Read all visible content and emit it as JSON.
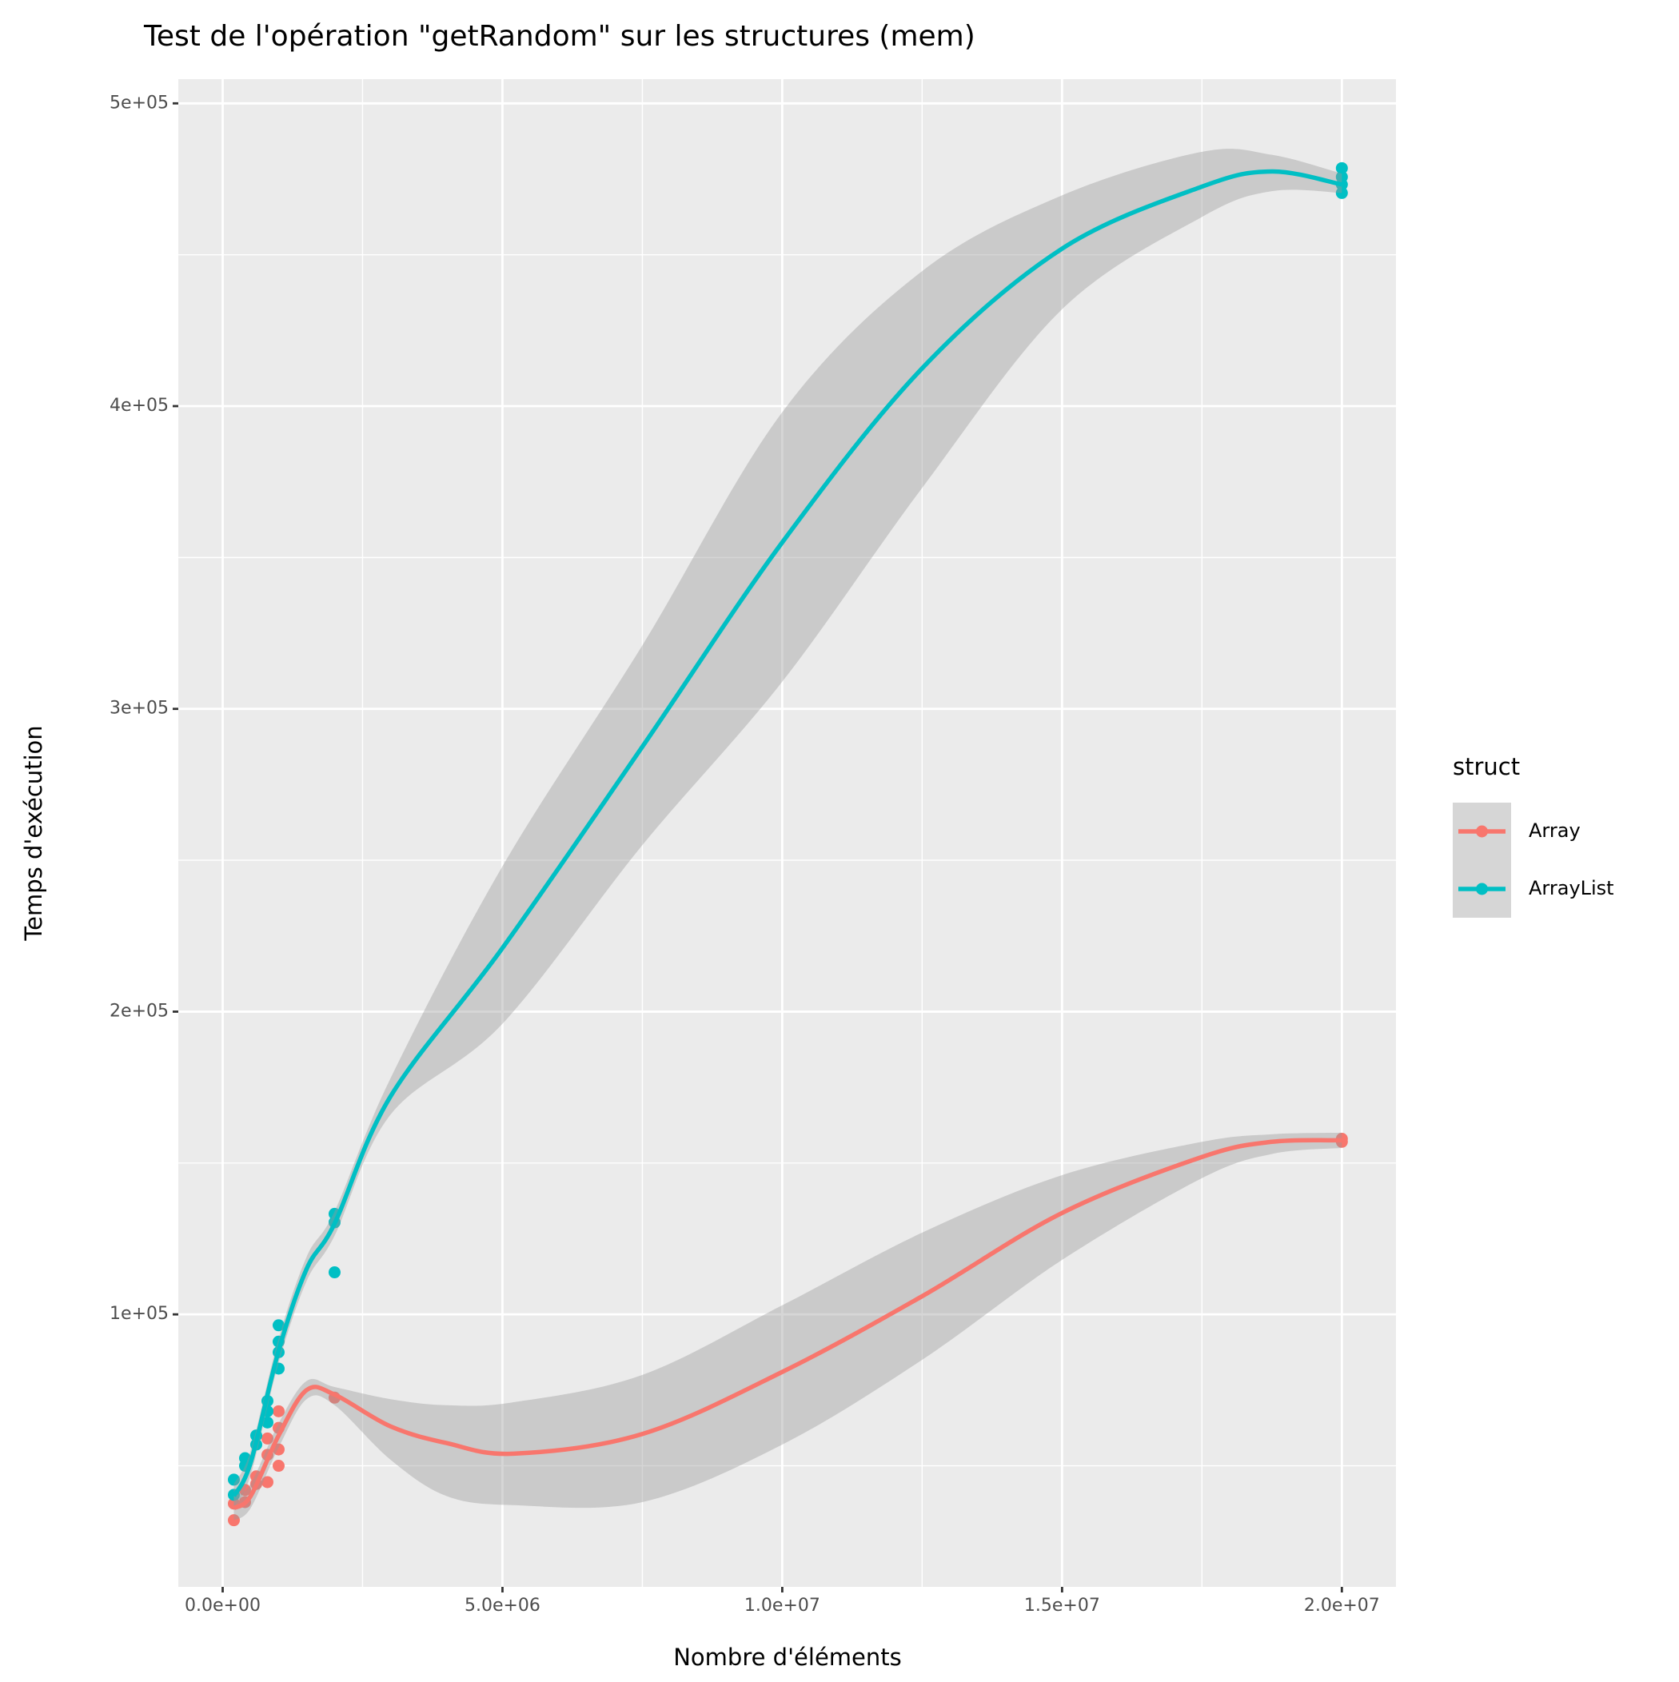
{
  "chart_data": {
    "type": "scatter",
    "title": "Test de l'opération \"getRandom\" sur les structures (mem)",
    "x_label": "Nombre d'éléments",
    "y_label": "Temps d'exécution",
    "legend_title": "struct",
    "panel_color": "#EBEBEB",
    "ribbon_color": "#999999",
    "grid": true,
    "xlim": [
      -793000,
      20967000
    ],
    "ylim": [
      10000,
      508000
    ],
    "xticks": [
      {
        "value": 0,
        "label": "0.0e+00"
      },
      {
        "value": 5000000,
        "label": "5.0e+06"
      },
      {
        "value": 10000000,
        "label": "1.0e+07"
      },
      {
        "value": 15000000,
        "label": "1.5e+07"
      },
      {
        "value": 20000000,
        "label": "2.0e+07"
      }
    ],
    "yticks": [
      {
        "value": 100000,
        "label": "1e+05"
      },
      {
        "value": 200000,
        "label": "2e+05"
      },
      {
        "value": 300000,
        "label": "3e+05"
      },
      {
        "value": 400000,
        "label": "4e+05"
      },
      {
        "value": 500000,
        "label": "5e+05"
      }
    ],
    "xminor": [
      2500000,
      7500000,
      12500000,
      17500000
    ],
    "yminor": [
      50000,
      150000,
      250000,
      350000,
      450000
    ],
    "series": [
      {
        "name": "Array",
        "color": "#F8766D",
        "points": {
          "x": [
            200000,
            200000,
            400000,
            400000,
            600000,
            600000,
            800000,
            800000,
            800000,
            1000000,
            1000000,
            1000000,
            1000000,
            2000000,
            20000000,
            20000000
          ],
          "y": [
            37500,
            32000,
            42000,
            38000,
            46500,
            44000,
            59000,
            53600,
            44600,
            68000,
            62500,
            55400,
            50000,
            72500,
            158000,
            157000
          ]
        },
        "smooth": {
          "x": [
            200000,
            500000,
            1000000,
            1500000,
            2000000,
            3000000,
            4000000,
            5200000,
            7500000,
            10000000,
            12500000,
            15000000,
            17500000,
            18750000,
            20000000
          ],
          "y": [
            36000,
            40000,
            60000,
            75000,
            73500,
            63000,
            57500,
            54000,
            60500,
            81000,
            106000,
            133500,
            152000,
            157000,
            157500
          ],
          "lower": [
            32000,
            36000,
            56000,
            72000,
            70000,
            52000,
            40000,
            37000,
            38000,
            57000,
            85000,
            118000,
            145000,
            153000,
            155000
          ],
          "upper": [
            40000,
            44000,
            64000,
            78000,
            76000,
            72000,
            70000,
            71000,
            80000,
            103000,
            127000,
            146000,
            157000,
            159500,
            160000
          ]
        }
      },
      {
        "name": "ArrayList",
        "color": "#00BFC4",
        "points": {
          "x": [
            200000,
            200000,
            400000,
            400000,
            600000,
            600000,
            800000,
            800000,
            800000,
            1000000,
            1000000,
            1000000,
            1000000,
            2000000,
            2000000,
            2000000,
            20000000,
            20000000,
            20000000,
            20000000
          ],
          "y": [
            45400,
            40400,
            52500,
            50000,
            60000,
            57000,
            71400,
            68000,
            64300,
            96400,
            91000,
            87500,
            82100,
            133200,
            130400,
            113900,
            478600,
            475700,
            473200,
            470400
          ]
        },
        "smooth": {
          "x": [
            200000,
            500000,
            1000000,
            1500000,
            2000000,
            3000000,
            5000000,
            7500000,
            10000000,
            12500000,
            15000000,
            17500000,
            18750000,
            20000000
          ],
          "y": [
            40000,
            51000,
            88000,
            115000,
            130000,
            172000,
            221000,
            287500,
            355000,
            412500,
            452000,
            472500,
            477500,
            473200
          ],
          "lower": [
            36000,
            47000,
            84000,
            111000,
            126000,
            166000,
            196000,
            255000,
            309000,
            373000,
            432000,
            462500,
            471000,
            470400
          ],
          "upper": [
            44000,
            55000,
            92000,
            119000,
            134000,
            178000,
            248000,
            321000,
            398000,
            444600,
            469600,
            484000,
            483000,
            476800
          ]
        }
      }
    ]
  }
}
